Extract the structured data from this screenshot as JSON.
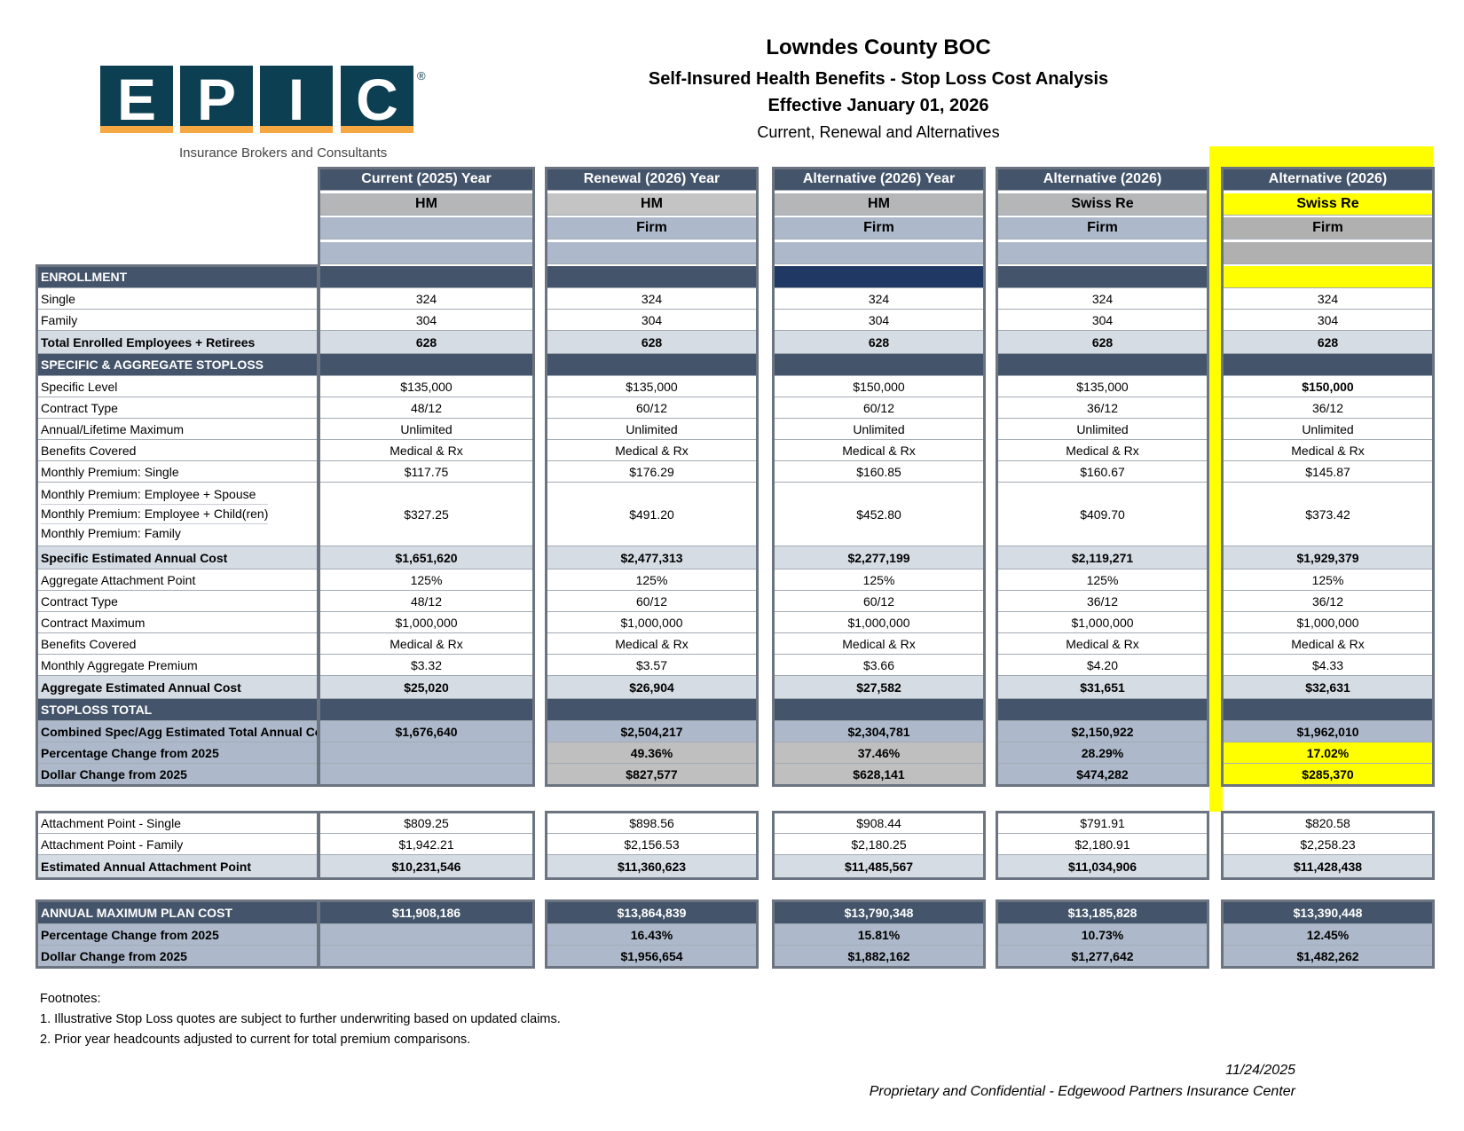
{
  "header": {
    "organization": "Lowndes County BOC",
    "subtitle": "Self-Insured Health Benefits - Stop Loss Cost Analysis",
    "effective": "Effective January 01, 2026",
    "description": "Current, Renewal and Alternatives"
  },
  "logo": {
    "letters": [
      "E",
      "P",
      "I",
      "C"
    ],
    "registered": "®",
    "tagline": "Insurance Brokers and Consultants",
    "colors": {
      "box": "#0d3f52",
      "accent": "#f5a742"
    }
  },
  "colors": {
    "dark": "#44546a",
    "light": "#d6dce4",
    "blue_grey": "#adb9ca",
    "grey": "#bfbfbf",
    "navy": "#1f3864",
    "highlight": "#ffff00"
  },
  "columns": [
    {
      "title": "Current (2025) Year",
      "carrier": "HM",
      "rating": "",
      "blank": ""
    },
    {
      "title": "Renewal (2026) Year",
      "carrier": "HM",
      "rating": "Firm",
      "blank": ""
    },
    {
      "title": "Alternative (2026) Year",
      "carrier": "HM",
      "rating": "Firm",
      "blank": ""
    },
    {
      "title": "Alternative (2026)",
      "carrier": "Swiss Re",
      "rating": "Firm",
      "blank": ""
    },
    {
      "title": "Alternative (2026)",
      "carrier": "Swiss Re",
      "rating": "Firm",
      "blank": "",
      "highlighted": true
    }
  ],
  "blocks": [
    {
      "rows": [
        {
          "type": "section",
          "label": "ENROLLMENT",
          "values": [
            "",
            "",
            "",
            "",
            ""
          ]
        },
        {
          "type": "data",
          "label": "Single",
          "values": [
            "324",
            "324",
            "324",
            "324",
            "324"
          ]
        },
        {
          "type": "data",
          "label": "Family",
          "values": [
            "304",
            "304",
            "304",
            "304",
            "304"
          ]
        },
        {
          "type": "total",
          "label": "Total Enrolled Employees + Retirees",
          "values": [
            "628",
            "628",
            "628",
            "628",
            "628"
          ]
        },
        {
          "type": "section",
          "label": "SPECIFIC & AGGREGATE STOPLOSS",
          "values": [
            "",
            "",
            "",
            "",
            ""
          ]
        },
        {
          "type": "data",
          "label": "Specific Level",
          "values": [
            "$135,000",
            "$135,000",
            "$150,000",
            "$135,000",
            "$150,000"
          ],
          "bold_cols": [
            4
          ]
        },
        {
          "type": "data",
          "label": "Contract Type",
          "values": [
            "48/12",
            "60/12",
            "60/12",
            "36/12",
            "36/12"
          ]
        },
        {
          "type": "data",
          "label": "Annual/Lifetime Maximum",
          "values": [
            "Unlimited",
            "Unlimited",
            "Unlimited",
            "Unlimited",
            "Unlimited"
          ]
        },
        {
          "type": "data",
          "label": "Benefits Covered",
          "values": [
            "Medical & Rx",
            "Medical & Rx",
            "Medical & Rx",
            "Medical & Rx",
            "Medical & Rx"
          ]
        },
        {
          "type": "data",
          "label": "Monthly Premium: Single",
          "values": [
            "$117.75",
            "$176.29",
            "$160.85",
            "$160.67",
            "$145.87"
          ]
        },
        {
          "type": "merged",
          "labels": [
            "Monthly Premium: Employee + Spouse",
            "Monthly Premium: Employee + Child(ren)",
            "Monthly Premium: Family"
          ],
          "values": [
            "$327.25",
            "$491.20",
            "$452.80",
            "$409.70",
            "$373.42"
          ]
        },
        {
          "type": "total",
          "label": "Specific Estimated Annual Cost",
          "values": [
            "$1,651,620",
            "$2,477,313",
            "$2,277,199",
            "$2,119,271",
            "$1,929,379"
          ]
        },
        {
          "type": "data",
          "label": "Aggregate Attachment Point",
          "values": [
            "125%",
            "125%",
            "125%",
            "125%",
            "125%"
          ]
        },
        {
          "type": "data",
          "label": "Contract Type",
          "values": [
            "48/12",
            "60/12",
            "60/12",
            "36/12",
            "36/12"
          ]
        },
        {
          "type": "data",
          "label": "Contract Maximum",
          "values": [
            "$1,000,000",
            "$1,000,000",
            "$1,000,000",
            "$1,000,000",
            "$1,000,000"
          ]
        },
        {
          "type": "data",
          "label": "Benefits Covered",
          "values": [
            "Medical & Rx",
            "Medical & Rx",
            "Medical & Rx",
            "Medical & Rx",
            "Medical & Rx"
          ]
        },
        {
          "type": "data",
          "label": "Monthly Aggregate Premium",
          "values": [
            "$3.32",
            "$3.57",
            "$3.66",
            "$4.20",
            "$4.33"
          ]
        },
        {
          "type": "total",
          "label": "Aggregate Estimated Annual Cost",
          "values": [
            "$25,020",
            "$26,904",
            "$27,582",
            "$31,651",
            "$32,631"
          ]
        },
        {
          "type": "section",
          "label": "STOPLOSS TOTAL",
          "values": [
            "",
            "",
            "",
            "",
            ""
          ]
        },
        {
          "type": "summary",
          "label": "Combined Spec/Agg Estimated Total Annual Cost",
          "values": [
            "$1,676,640",
            "$2,504,217",
            "$2,304,781",
            "$2,150,922",
            "$1,962,010"
          ]
        },
        {
          "type": "summary",
          "label": "Percentage Change from 2025",
          "values": [
            "",
            "49.36%",
            "37.46%",
            "28.29%",
            "17.02%"
          ],
          "cell_fill": [
            "",
            "grey",
            "grey",
            "",
            "highlight"
          ]
        },
        {
          "type": "summary",
          "label": "Dollar Change from 2025",
          "values": [
            "",
            "$827,577",
            "$628,141",
            "$474,282",
            "$285,370"
          ],
          "cell_fill": [
            "",
            "grey",
            "grey",
            "",
            "highlight"
          ]
        }
      ]
    },
    {
      "rows": [
        {
          "type": "data",
          "label": "Attachment Point - Single",
          "values": [
            "$809.25",
            "$898.56",
            "$908.44",
            "$791.91",
            "$820.58"
          ]
        },
        {
          "type": "data",
          "label": "Attachment Point - Family",
          "values": [
            "$1,942.21",
            "$2,156.53",
            "$2,180.25",
            "$2,180.91",
            "$2,258.23"
          ]
        },
        {
          "type": "total",
          "label": "Estimated Annual Attachment Point",
          "values": [
            "$10,231,546",
            "$11,360,623",
            "$11,485,567",
            "$11,034,906",
            "$11,428,438"
          ]
        }
      ]
    },
    {
      "rows": [
        {
          "type": "darktotal",
          "label": "ANNUAL MAXIMUM PLAN COST",
          "values": [
            "$11,908,186",
            "$13,864,839",
            "$13,790,348",
            "$13,185,828",
            "$13,390,448"
          ]
        },
        {
          "type": "summary",
          "label": "Percentage Change from 2025",
          "values": [
            "",
            "16.43%",
            "15.81%",
            "10.73%",
            "12.45%"
          ]
        },
        {
          "type": "summary",
          "label": "Dollar Change from 2025",
          "values": [
            "",
            "$1,956,654",
            "$1,882,162",
            "$1,277,642",
            "$1,482,262"
          ]
        }
      ]
    }
  ],
  "footnotes": {
    "heading": "Footnotes:",
    "items": [
      "1.  Illustrative Stop Loss quotes are subject to further underwriting based on updated claims.",
      "2.  Prior year headcounts adjusted to current for total premium comparisons."
    ]
  },
  "footer": {
    "date": "11/24/2025",
    "confidential": "Proprietary and Confidential - Edgewood Partners Insurance Center"
  }
}
